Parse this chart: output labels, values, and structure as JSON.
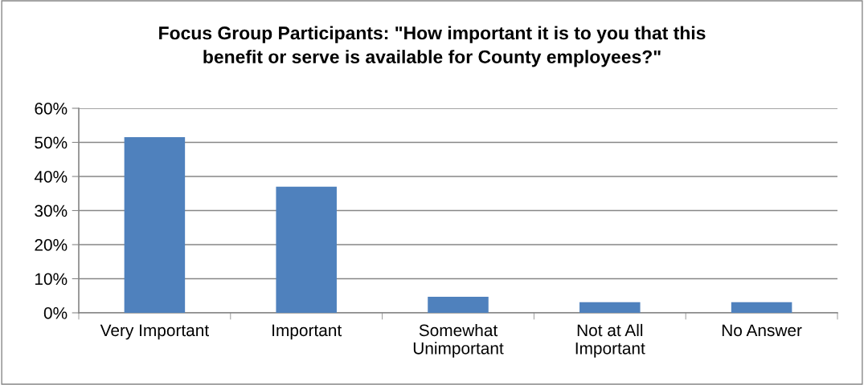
{
  "chart_data": {
    "type": "bar",
    "title": "Focus Group Participants: \"How important it is to you that this\nbenefit or serve is available for County employees?\"",
    "categories": [
      "Very Important",
      "Important",
      "Somewhat\nUnimportant",
      "Not at All\nImportant",
      "No Answer"
    ],
    "values": [
      51.5,
      37,
      4.7,
      3.1,
      3.1
    ],
    "color": "#4f81bd",
    "ylim": [
      0,
      60
    ],
    "yticks": [
      {
        "value": 0,
        "label": "0%"
      },
      {
        "value": 10,
        "label": "10%"
      },
      {
        "value": 20,
        "label": "20%"
      },
      {
        "value": 30,
        "label": "30%"
      },
      {
        "value": 40,
        "label": "40%"
      },
      {
        "value": 50,
        "label": "50%"
      },
      {
        "value": 60,
        "label": "60%"
      }
    ],
    "grid": "y",
    "legend": false
  }
}
